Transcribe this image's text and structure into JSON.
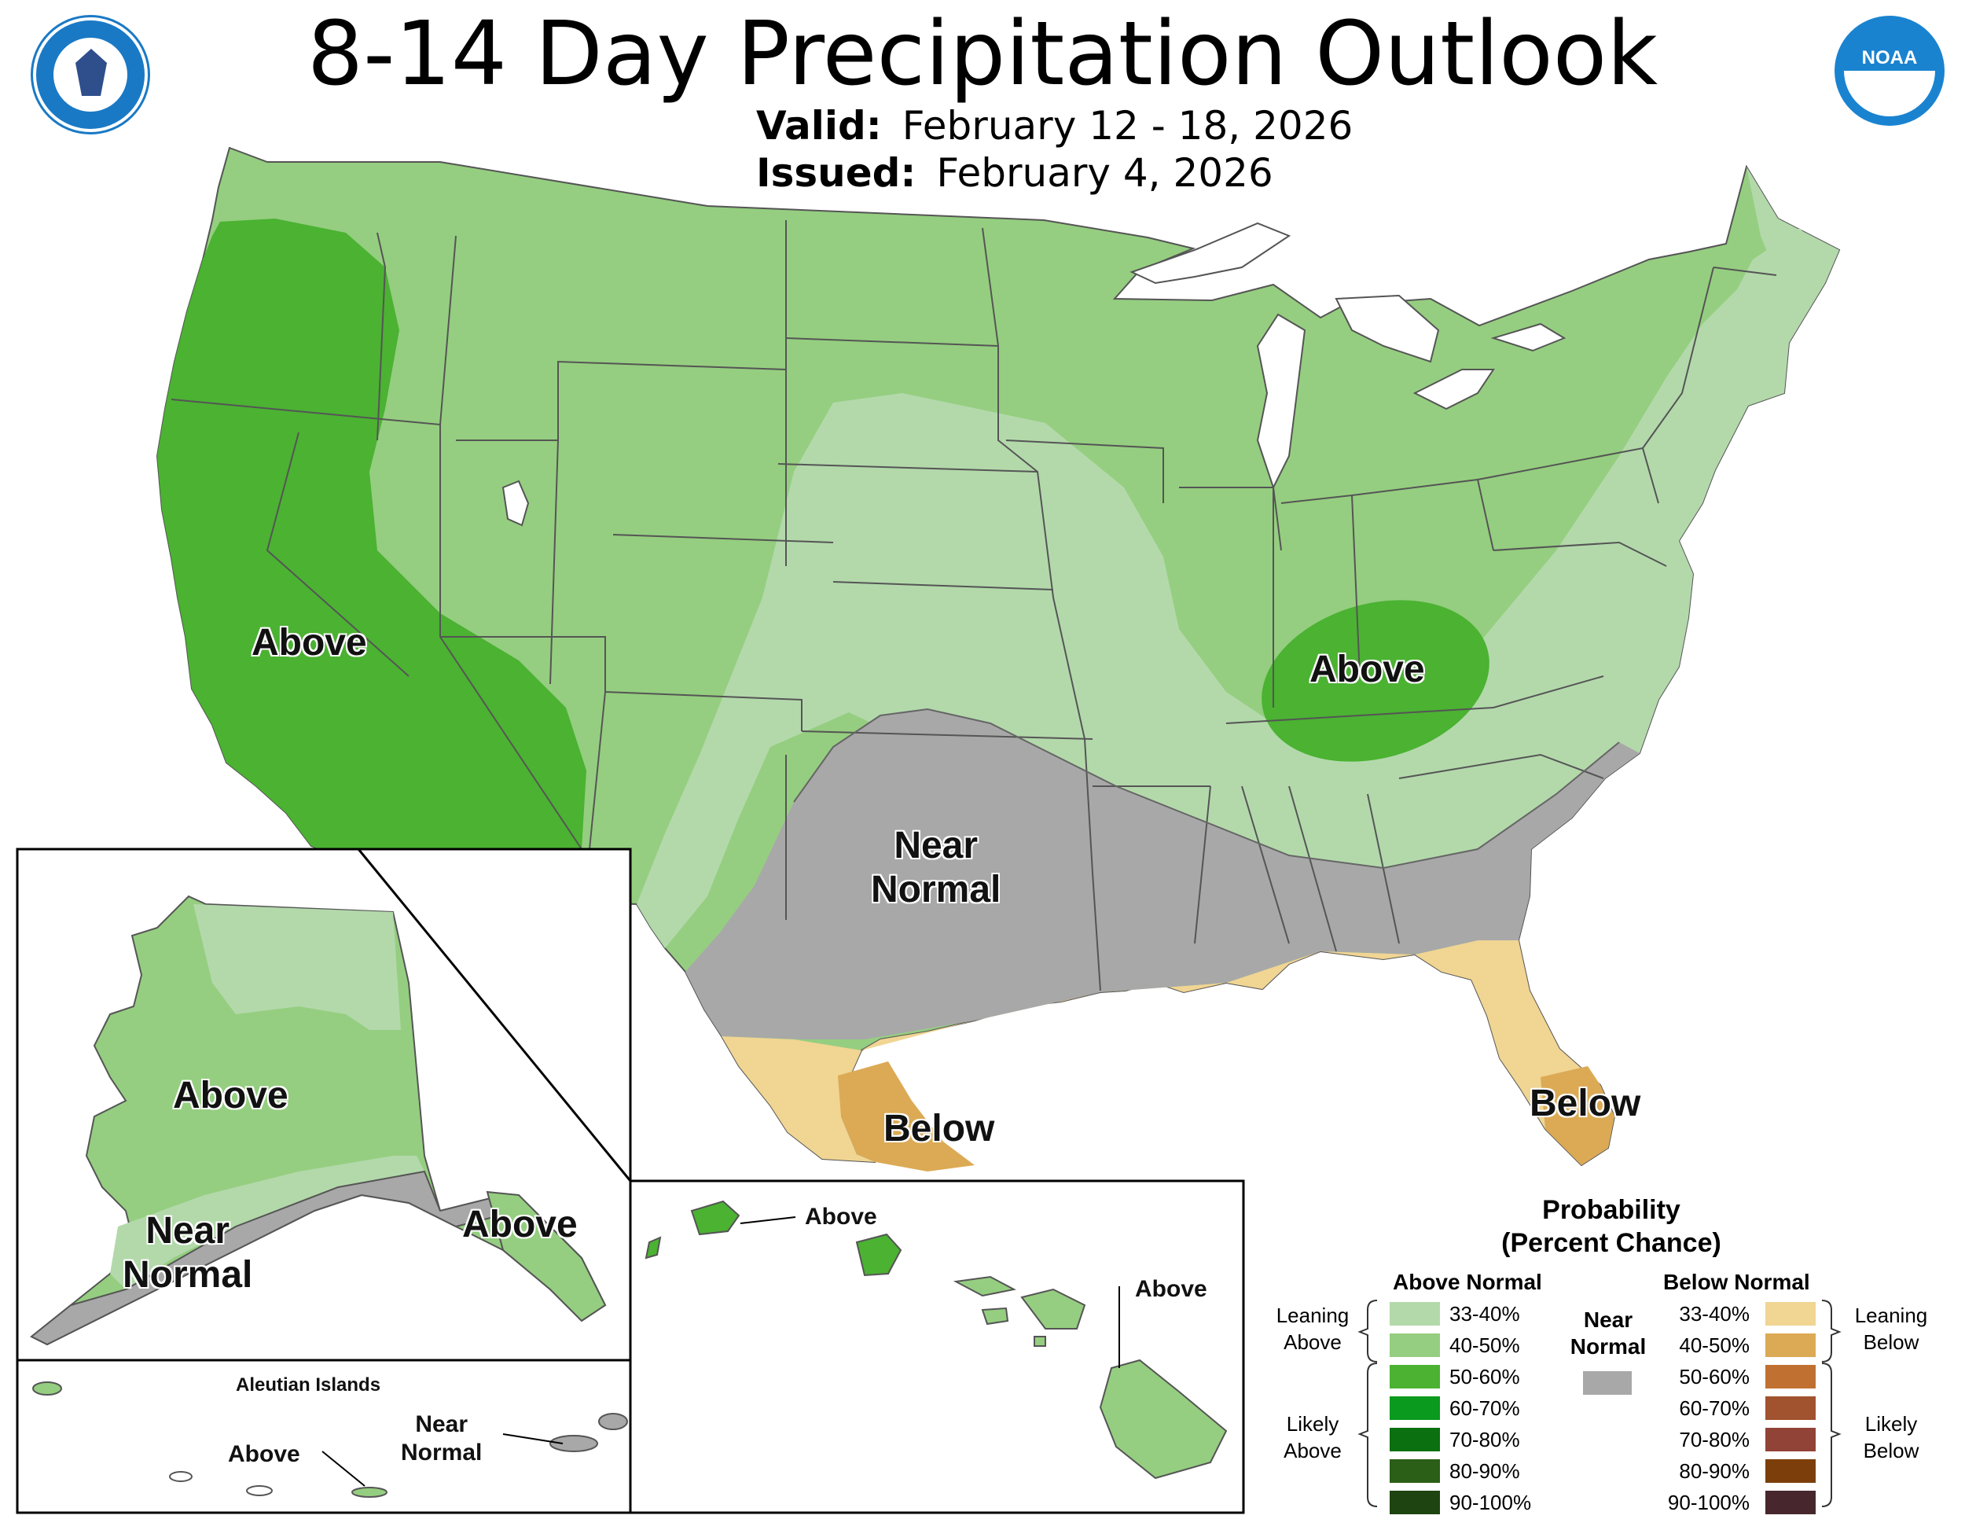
{
  "header": {
    "title": "8-14 Day Precipitation Outlook",
    "valid_label": "Valid:",
    "valid_value": "February 12 - 18, 2026",
    "issued_label": "Issued:",
    "issued_value": "February 4, 2026"
  },
  "logos": {
    "left": "department-of-commerce-seal",
    "right": "noaa-logo",
    "noaa_text": "NOAA"
  },
  "colors": {
    "above_33_40": "#b3d9ab",
    "above_40_50": "#95ce80",
    "above_50_60": "#4bb232",
    "above_60_70": "#0a9a1e",
    "above_70_80": "#0a7010",
    "above_80_90": "#2b5e17",
    "above_90_100": "#1e4412",
    "near_normal": "#a8a8a8",
    "below_33_40": "#f0d593",
    "below_40_50": "#dcaa55",
    "below_50_60": "#c07132",
    "below_60_70": "#a1522e",
    "below_70_80": "#924338",
    "below_80_90": "#7c3f0b",
    "below_90_100": "#47272d"
  },
  "labels": {
    "conus_west_above": "Above",
    "conus_east_above": "Above",
    "conus_near_normal_1": "Near",
    "conus_near_normal_2": "Normal",
    "conus_texas_below": "Below",
    "conus_florida_below": "Below",
    "alaska_above": "Above",
    "alaska_southeast_above": "Above",
    "alaska_near_normal_1": "Near",
    "alaska_near_normal_2": "Normal",
    "aleutian_title": "Aleutian Islands",
    "aleutian_above": "Above",
    "aleutian_near_1": "Near",
    "aleutian_near_2": "Normal",
    "hawaii_above_1": "Above",
    "hawaii_above_2": "Above"
  },
  "legend": {
    "title_1": "Probability",
    "title_2": "(Percent Chance)",
    "above_heading": "Above Normal",
    "below_heading": "Below Normal",
    "near_heading_1": "Near",
    "near_heading_2": "Normal",
    "leaning_above_1": "Leaning",
    "leaning_above_2": "Above",
    "likely_above_1": "Likely",
    "likely_above_2": "Above",
    "leaning_below_1": "Leaning",
    "leaning_below_2": "Below",
    "likely_below_1": "Likely",
    "likely_below_2": "Below",
    "ranges": [
      "33-40%",
      "40-50%",
      "50-60%",
      "60-70%",
      "70-80%",
      "80-90%",
      "90-100%"
    ]
  }
}
